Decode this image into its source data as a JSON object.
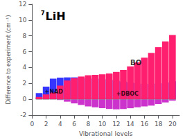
{
  "chart_data": {
    "type": "bar",
    "stacked": true,
    "title": "LiH",
    "xlabel": "Vibrational levels",
    "ylabel": "Difference to experiment (cm⁻¹)",
    "x": [
      1,
      2,
      3,
      4,
      5,
      6,
      7,
      8,
      9,
      10,
      11,
      12,
      13,
      14,
      15,
      16,
      17,
      18,
      19,
      20
    ],
    "xlim": [
      0,
      21
    ],
    "xticks": [
      0,
      2,
      4,
      6,
      8,
      10,
      12,
      14,
      16,
      18,
      20
    ],
    "ylim": [
      -2,
      12
    ],
    "yticks": [
      -2,
      0,
      2,
      4,
      6,
      8,
      10,
      12
    ],
    "grid": false,
    "series": [
      {
        "color": "#CC33CC",
        "values": [
          0,
          0,
          0,
          -0.1,
          -0.3,
          -0.52,
          -0.72,
          -0.9,
          -1.02,
          -1.12,
          -1.22,
          -1.27,
          -1.23,
          -1.13,
          -1.02,
          -0.9,
          -0.8,
          -0.6,
          -0.4,
          -0.18
        ]
      },
      {
        "color": "#3535FF",
        "values": [
          0.78,
          1.6,
          2.6,
          2.73,
          2.76,
          2.76,
          2.71,
          2.65,
          2.6,
          2.53,
          2.43,
          2.33,
          2.23,
          2.13,
          2.03,
          1.93,
          1.93,
          2.0,
          2.1,
          2.28
        ]
      },
      {
        "color": "#22DD22",
        "values": [
          0.12,
          0.15,
          0.15,
          0.15,
          0.17,
          0.17,
          0.17,
          0.17,
          0.17,
          0.17,
          0.17,
          0.17,
          0.17,
          0.17,
          0.17,
          0.17,
          0.17,
          0.18,
          0.15,
          0.17
        ]
      },
      {
        "color": "#FF1F6E",
        "values": [
          0.3,
          0.6,
          0.85,
          1.72,
          2.37,
          2.67,
          2.87,
          3.03,
          3.08,
          3.15,
          3.25,
          3.45,
          3.7,
          4.15,
          4.65,
          5.25,
          5.85,
          6.57,
          7.3,
          8.1
        ]
      }
    ],
    "annotations": [
      {
        "text": "7"
      },
      {
        "text": "+NAD",
        "x": 1.8,
        "y": 0.62
      },
      {
        "text": "BO",
        "x": 14,
        "y": 4.2
      },
      {
        "text": "+DBOC",
        "x": 12,
        "y": 0.35
      }
    ]
  }
}
